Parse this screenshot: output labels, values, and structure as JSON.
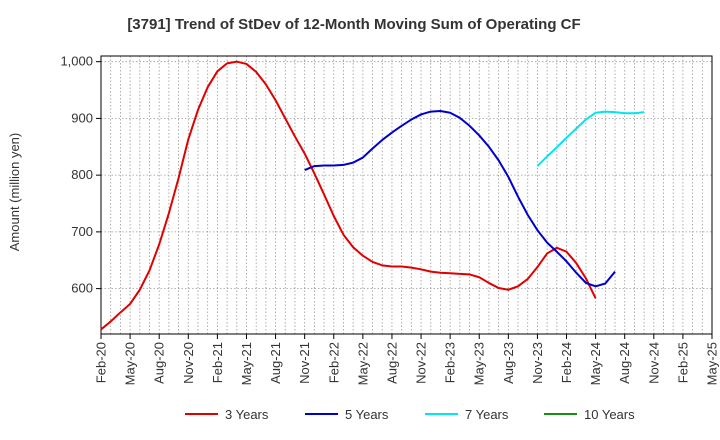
{
  "chart_data": {
    "type": "line",
    "title": "[3791]  Trend of StDev of 12-Month Moving Sum of Operating CF",
    "xlabel": "",
    "ylabel": "Amount (million yen)",
    "ylim": [
      520,
      1010
    ],
    "yticks": [
      600,
      700,
      800,
      900,
      1000
    ],
    "ytick_labels": [
      "600",
      "700",
      "800",
      "900",
      "1,000"
    ],
    "x_ticks": [
      "Feb-20",
      "May-20",
      "Aug-20",
      "Nov-20",
      "Feb-21",
      "May-21",
      "Aug-21",
      "Nov-21",
      "Feb-22",
      "May-22",
      "Aug-22",
      "Nov-22",
      "Feb-23",
      "May-23",
      "Aug-23",
      "Nov-23",
      "Feb-24",
      "May-24",
      "Aug-24",
      "Nov-24",
      "Feb-25",
      "May-25"
    ],
    "grid": true,
    "legend_position": "bottom",
    "series": [
      {
        "name": "3 Years",
        "color": "#e00000",
        "start_month": "Feb-20",
        "values": [
          528,
          542,
          558,
          573,
          598,
          632,
          678,
          733,
          795,
          863,
          915,
          955,
          983,
          997,
          1000,
          996,
          982,
          960,
          932,
          900,
          868,
          838,
          803,
          766,
          728,
          695,
          673,
          658,
          647,
          641,
          639,
          639,
          637,
          634,
          630,
          628,
          627,
          626,
          625,
          620,
          610,
          601,
          598,
          604,
          617,
          638,
          662,
          672,
          665,
          645,
          618,
          583
        ]
      },
      {
        "name": "5 Years",
        "color": "#0000cc",
        "start_month": "Nov-21",
        "values": [
          809,
          816,
          817,
          817,
          818,
          822,
          831,
          847,
          862,
          875,
          887,
          898,
          907,
          912,
          913,
          910,
          901,
          887,
          870,
          850,
          826,
          797,
          762,
          730,
          703,
          681,
          665,
          648,
          628,
          610,
          604,
          609,
          630
        ]
      },
      {
        "name": "7 Years",
        "color": "#00e5ee",
        "start_month": "Nov-23",
        "values": [
          816,
          833,
          849,
          866,
          882,
          898,
          910,
          912,
          911,
          909,
          909,
          911
        ]
      },
      {
        "name": "10 Years",
        "color": "#1a8c1a",
        "start_month": "",
        "values": []
      }
    ]
  }
}
